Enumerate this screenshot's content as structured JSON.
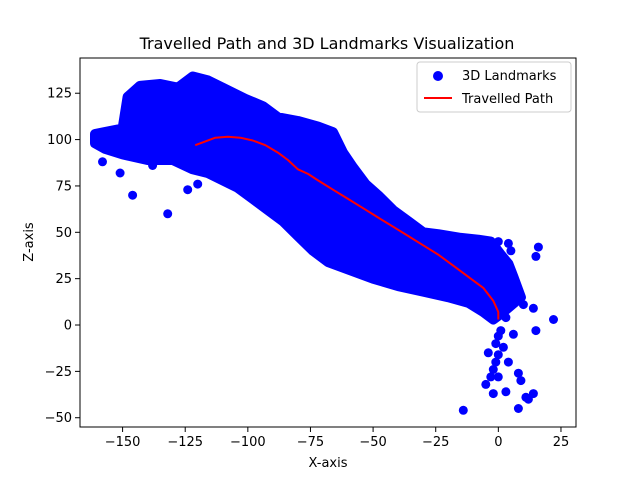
{
  "chart_data": {
    "type": "scatter",
    "title": "Travelled Path and 3D Landmarks Visualization",
    "xlabel": "X-axis",
    "ylabel": "Z-axis",
    "xlim": [
      -167,
      31
    ],
    "ylim": [
      -55,
      144
    ],
    "xticks": [
      -150,
      -125,
      -100,
      -75,
      -50,
      -25,
      0,
      25
    ],
    "xtick_labels": [
      "−150",
      "−125",
      "−100",
      "−75",
      "−50",
      "−25",
      "0",
      "25"
    ],
    "yticks": [
      -50,
      -25,
      0,
      25,
      50,
      75,
      100,
      125
    ],
    "ytick_labels": [
      "−50",
      "−25",
      "0",
      "25",
      "50",
      "75",
      "100",
      "125"
    ],
    "grid": false,
    "legend_position": "top-right",
    "series": [
      {
        "name": "3D Landmarks",
        "kind": "scatter",
        "color": "#0000ff",
        "band_upper": [
          [
            -161,
            103
          ],
          [
            -150,
            106
          ],
          [
            -148,
            123
          ],
          [
            -143,
            129
          ],
          [
            -135,
            130
          ],
          [
            -128,
            128
          ],
          [
            -122,
            134
          ],
          [
            -116,
            132
          ],
          [
            -110,
            128
          ],
          [
            -101,
            122
          ],
          [
            -94,
            118
          ],
          [
            -88,
            112
          ],
          [
            -80,
            110
          ],
          [
            -72,
            107
          ],
          [
            -66,
            104
          ],
          [
            -62,
            93
          ],
          [
            -58,
            85
          ],
          [
            -53,
            76
          ],
          [
            -48,
            70
          ],
          [
            -42,
            62
          ],
          [
            -36,
            56
          ],
          [
            -30,
            50
          ],
          [
            -24,
            49
          ],
          [
            -15,
            47
          ],
          [
            -8,
            46
          ],
          [
            -3,
            45
          ],
          [
            1,
            38
          ],
          [
            4,
            33
          ],
          [
            6,
            26
          ],
          [
            9,
            15
          ]
        ],
        "band_lower": [
          [
            9,
            15
          ],
          [
            2,
            7
          ],
          [
            -2,
            3
          ],
          [
            -6,
            7
          ],
          [
            -12,
            12
          ],
          [
            -20,
            15
          ],
          [
            -30,
            18
          ],
          [
            -40,
            21
          ],
          [
            -50,
            25
          ],
          [
            -60,
            30
          ],
          [
            -68,
            34
          ],
          [
            -74,
            40
          ],
          [
            -80,
            48
          ],
          [
            -86,
            56
          ],
          [
            -92,
            62
          ],
          [
            -98,
            68
          ],
          [
            -104,
            74
          ],
          [
            -110,
            78
          ],
          [
            -116,
            82
          ],
          [
            -122,
            84
          ],
          [
            -130,
            89
          ],
          [
            -140,
            89
          ],
          [
            -150,
            92
          ],
          [
            -157,
            95
          ],
          [
            -161,
            98
          ]
        ],
        "points": [
          [
            -158,
            88
          ],
          [
            -151,
            82
          ],
          [
            -146,
            70
          ],
          [
            -132,
            60
          ],
          [
            -124,
            73
          ],
          [
            -120,
            76
          ],
          [
            -143,
            96
          ],
          [
            -138,
            86
          ],
          [
            -112,
            86
          ],
          [
            -10,
            41
          ],
          [
            -5,
            38
          ],
          [
            -3,
            32
          ],
          [
            -1,
            22
          ],
          [
            2,
            18
          ],
          [
            0,
            45
          ],
          [
            4,
            44
          ],
          [
            5,
            40
          ],
          [
            2,
            30
          ],
          [
            1,
            20
          ],
          [
            5,
            25
          ],
          [
            8,
            14
          ],
          [
            10,
            11
          ],
          [
            14,
            9
          ],
          [
            16,
            42
          ],
          [
            15,
            37
          ],
          [
            22,
            3
          ],
          [
            15,
            -3
          ],
          [
            1,
            -3
          ],
          [
            0,
            -6
          ],
          [
            -1,
            -10
          ],
          [
            2,
            -12
          ],
          [
            0,
            -16
          ],
          [
            -1,
            -20
          ],
          [
            -2,
            -24
          ],
          [
            -3,
            -28
          ],
          [
            -5,
            -32
          ],
          [
            0,
            -28
          ],
          [
            3,
            -36
          ],
          [
            8,
            -26
          ],
          [
            9,
            -30
          ],
          [
            14,
            -37
          ],
          [
            11,
            -39
          ],
          [
            12,
            -40
          ],
          [
            8,
            -45
          ],
          [
            -14,
            -46
          ],
          [
            -2,
            -37
          ],
          [
            4,
            -20
          ],
          [
            -4,
            -15
          ],
          [
            6,
            -5
          ],
          [
            3,
            4
          ],
          [
            -8,
            30
          ],
          [
            -12,
            36
          ]
        ]
      },
      {
        "name": "Travelled Path",
        "kind": "line",
        "color": "#ff0000",
        "points": [
          [
            -121,
            97
          ],
          [
            -117,
            99
          ],
          [
            -113,
            101
          ],
          [
            -108,
            101.5
          ],
          [
            -103,
            101
          ],
          [
            -98,
            99.5
          ],
          [
            -93,
            97
          ],
          [
            -88,
            93
          ],
          [
            -84,
            89
          ],
          [
            -80,
            84
          ],
          [
            -76,
            81.5
          ],
          [
            -72,
            78
          ],
          [
            -66,
            73
          ],
          [
            -60,
            68
          ],
          [
            -54,
            63
          ],
          [
            -48,
            58
          ],
          [
            -42,
            53
          ],
          [
            -36,
            48
          ],
          [
            -30,
            43
          ],
          [
            -24,
            38
          ],
          [
            -18,
            32
          ],
          [
            -12,
            26
          ],
          [
            -6,
            20
          ],
          [
            -2,
            13
          ],
          [
            0,
            7
          ],
          [
            0,
            3
          ]
        ]
      }
    ]
  }
}
